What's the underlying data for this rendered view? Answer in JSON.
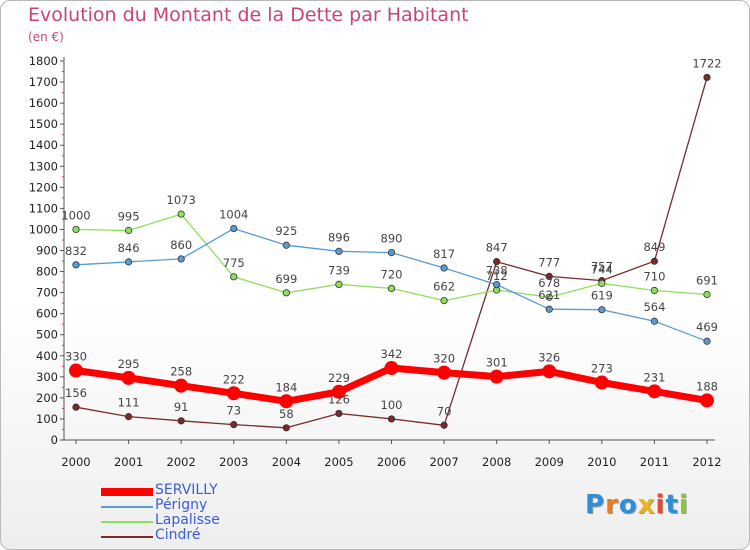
{
  "title": "Evolution du Montant de la Dette par Habitant",
  "subtitle": "(en €)",
  "logo_text": "Proxiti",
  "colors": {
    "title": "#c8447c",
    "SERVILLY": "#ff0000",
    "Périgny": "#5b9bd5",
    "Lapalisse": "#8ee05c",
    "Cindré": "#7a2a2a",
    "axis": "#cc3366"
  },
  "chart_data": {
    "type": "line",
    "title": "Evolution du Montant de la Dette par Habitant",
    "subtitle": "(en €)",
    "x": [
      "2000",
      "2001",
      "2002",
      "2003",
      "2004",
      "2005",
      "2006",
      "2007",
      "2008",
      "2009",
      "2010",
      "2011",
      "2012"
    ],
    "ylim": [
      0,
      1800
    ],
    "yticks": [
      0,
      100,
      200,
      300,
      400,
      500,
      600,
      700,
      800,
      900,
      1000,
      1100,
      1200,
      1300,
      1400,
      1500,
      1600,
      1700,
      1800
    ],
    "grid": false,
    "legend_position": "bottom-left",
    "series": [
      {
        "name": "SERVILLY",
        "values": [
          330,
          295,
          258,
          222,
          184,
          229,
          342,
          320,
          301,
          326,
          273,
          231,
          188
        ]
      },
      {
        "name": "Périgny",
        "values": [
          832,
          846,
          860,
          1004,
          925,
          896,
          890,
          817,
          738,
          621,
          619,
          564,
          469
        ]
      },
      {
        "name": "Lapalisse",
        "values": [
          1000,
          995,
          1073,
          775,
          699,
          739,
          720,
          662,
          712,
          678,
          744,
          710,
          691
        ]
      },
      {
        "name": "Cindré",
        "values": [
          156,
          111,
          91,
          73,
          58,
          126,
          100,
          70,
          847,
          777,
          757,
          849,
          1722
        ]
      }
    ]
  }
}
